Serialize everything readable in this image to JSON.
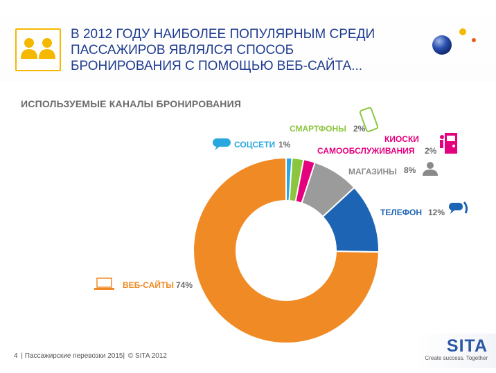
{
  "title": "В 2012 ГОДУ НАИБОЛЕЕ ПОПУЛЯРНЫМ СРЕДИ ПАССАЖИРОВ ЯВЛЯЛСЯ СПОСОБ БРОНИРОВАНИЯ С ПОМОЩЬЮ ВЕБ-САЙТА...",
  "subtitle": "ИСПОЛЬЗУЕМЫЕ КАНАЛЫ БРОНИРОВАНИЯ",
  "footer": {
    "page": "4",
    "text": "| Пассажирские перевозки 2015|",
    "copyright": "© SITA 2012"
  },
  "brand": {
    "name": "SITA",
    "tagline": "Create success. Together"
  },
  "chart_data": {
    "type": "pie",
    "variant": "donut",
    "categories": [
      "СОЦСЕТИ",
      "СМАРТФОНЫ",
      "КИОСКИ САМООБСЛУЖИВАНИЯ",
      "МАГАЗИНЫ",
      "ТЕЛЕФОН",
      "ВЕБ-САЙТЫ"
    ],
    "values": [
      1,
      2,
      2,
      8,
      12,
      74
    ],
    "value_labels": [
      "1%",
      "2%",
      "2%",
      "8%",
      "12%",
      "74%"
    ],
    "colors": [
      "#29a8df",
      "#8cc63f",
      "#e5007e",
      "#9b9b9b",
      "#1e64b4",
      "#f08a24"
    ],
    "label_lines": [
      [
        "СОЦСЕТИ"
      ],
      [
        "СМАРТФОНЫ"
      ],
      [
        "КИОСКИ",
        "САМООБСЛУЖИВАНИЯ"
      ],
      [
        "МАГАЗИНЫ"
      ],
      [
        "ТЕЛЕФОН"
      ],
      [
        "ВЕБ-САЙТЫ"
      ]
    ],
    "icons": [
      "chat-bubble-icon",
      "smartphone-icon",
      "kiosk-icon",
      "person-icon",
      "phone-icon",
      "laptop-icon"
    ]
  }
}
